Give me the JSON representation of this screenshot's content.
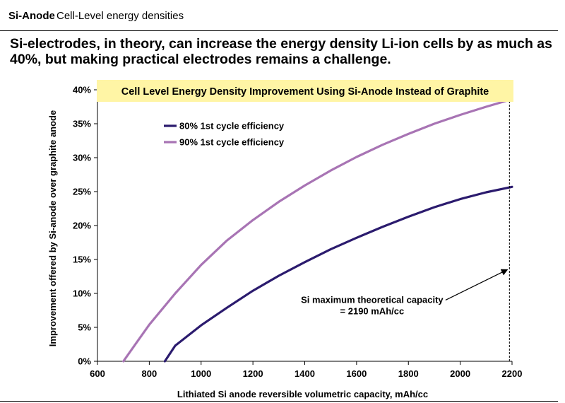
{
  "header": {
    "section": "Si-Anode",
    "subsection": "Cell-Level energy densities"
  },
  "headline": "Si-electrodes, in theory, can increase the energy density Li-ion cells by as much as 40%, but making practical electrodes remains a challenge.",
  "colors": {
    "series_80": "#2b1b6e",
    "series_90": "#a874b4",
    "title_box": "#fff5a5"
  },
  "chart_data": {
    "type": "line",
    "title": "Cell Level Energy Density Improvement Using Si-Anode Instead of Graphite",
    "xlabel": "Lithiated Si anode reversible volumetric capacity, mAh/cc",
    "ylabel": "Improvement offered by Si-anode over graphite anode",
    "xlim": [
      600,
      2200
    ],
    "ylim": [
      0,
      40
    ],
    "x_ticks": [
      600,
      800,
      1000,
      1200,
      1400,
      1600,
      1800,
      2000,
      2200
    ],
    "y_ticks": [
      "0%",
      "5%",
      "10%",
      "15%",
      "20%",
      "25%",
      "30%",
      "35%",
      "40%"
    ],
    "grid": false,
    "legend_position": "top-left",
    "series": [
      {
        "name": "80% 1st cycle efficiency",
        "x": [
          860,
          900,
          1000,
          1100,
          1200,
          1300,
          1400,
          1500,
          1600,
          1700,
          1800,
          1900,
          2000,
          2100,
          2200
        ],
        "y": [
          0,
          2.3,
          5.3,
          7.9,
          10.4,
          12.6,
          14.6,
          16.5,
          18.2,
          19.8,
          21.3,
          22.7,
          23.9,
          24.9,
          25.7
        ]
      },
      {
        "name": "90% 1st cycle efficiency",
        "x": [
          700,
          750,
          800,
          900,
          1000,
          1100,
          1200,
          1300,
          1400,
          1500,
          1600,
          1700,
          1800,
          1900,
          2000,
          2100,
          2190
        ],
        "y": [
          0,
          2.7,
          5.4,
          10.0,
          14.2,
          17.8,
          20.8,
          23.5,
          25.9,
          28.1,
          30.1,
          31.9,
          33.5,
          35.0,
          36.3,
          37.5,
          38.5
        ]
      }
    ],
    "annotations": [
      {
        "text_lines": [
          "Si maximum theoretical capacity",
          "= 2190 mAh/cc"
        ],
        "x": 2190,
        "y": 13.5,
        "label_x": 1660,
        "label_y": 8.6,
        "line_style": "dashed vertical"
      }
    ]
  }
}
